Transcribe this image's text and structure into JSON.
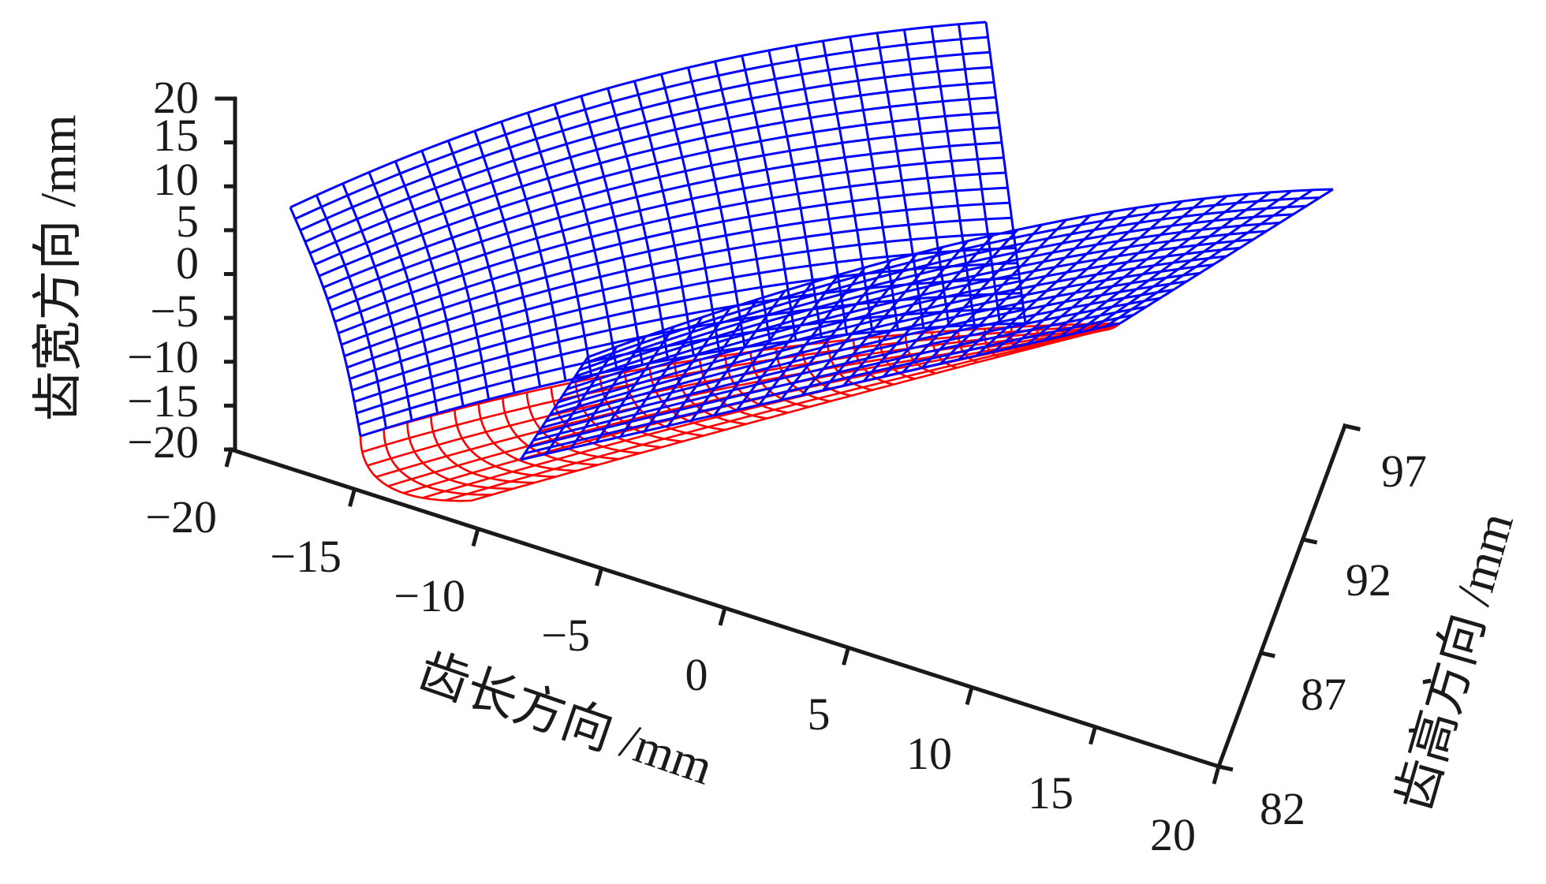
{
  "chart_data": {
    "type": "3d-surface-mesh",
    "title": "",
    "axes": {
      "length": {
        "label": "齿长方向 /mm",
        "range": [
          -20,
          20
        ],
        "ticks": [
          -20,
          -15,
          -10,
          -5,
          0,
          5,
          10,
          15,
          20
        ],
        "tick_labels": [
          "−20",
          "−15",
          "−10",
          "−5",
          "0",
          "5",
          "10",
          "15",
          "20"
        ]
      },
      "width": {
        "label": "齿宽方向 /mm",
        "range": [
          -20,
          20
        ],
        "ticks": [
          20,
          15,
          10,
          5,
          0,
          -5,
          -10,
          -15,
          -20
        ],
        "tick_labels": [
          "20",
          "15",
          "10",
          "5",
          "0",
          "−5",
          "−10",
          "−15",
          "−20"
        ]
      },
      "height": {
        "label": "齿高方向 /mm",
        "range": [
          82,
          97
        ],
        "ticks": [
          97,
          92,
          87,
          82
        ],
        "tick_labels": [
          "97",
          "92",
          "87",
          "82"
        ]
      }
    },
    "series": [
      {
        "surface": "flank-vertical",
        "color": "#0000ff",
        "length_range": [
          -17,
          17
        ],
        "width_range": [
          -20,
          20
        ],
        "mesh_rows": 20,
        "mesh_cols": 26
      },
      {
        "surface": "bottom-land",
        "color": "#0000ff",
        "length_range": [
          -10,
          20
        ],
        "height_range": [
          82,
          97
        ],
        "mesh_rows": 16,
        "mesh_cols": 30
      },
      {
        "surface": "root-fillet",
        "color": "#ff0000",
        "length_range": [
          -17,
          16
        ],
        "mesh_rows": 8,
        "mesh_cols": 30
      }
    ],
    "colors": {
      "mesh_surface": "#0000ff",
      "fillet_surface": "#ff0000",
      "axes": "#1a1a1a",
      "background": "#ffffff"
    },
    "grid": false,
    "legend": "none"
  }
}
